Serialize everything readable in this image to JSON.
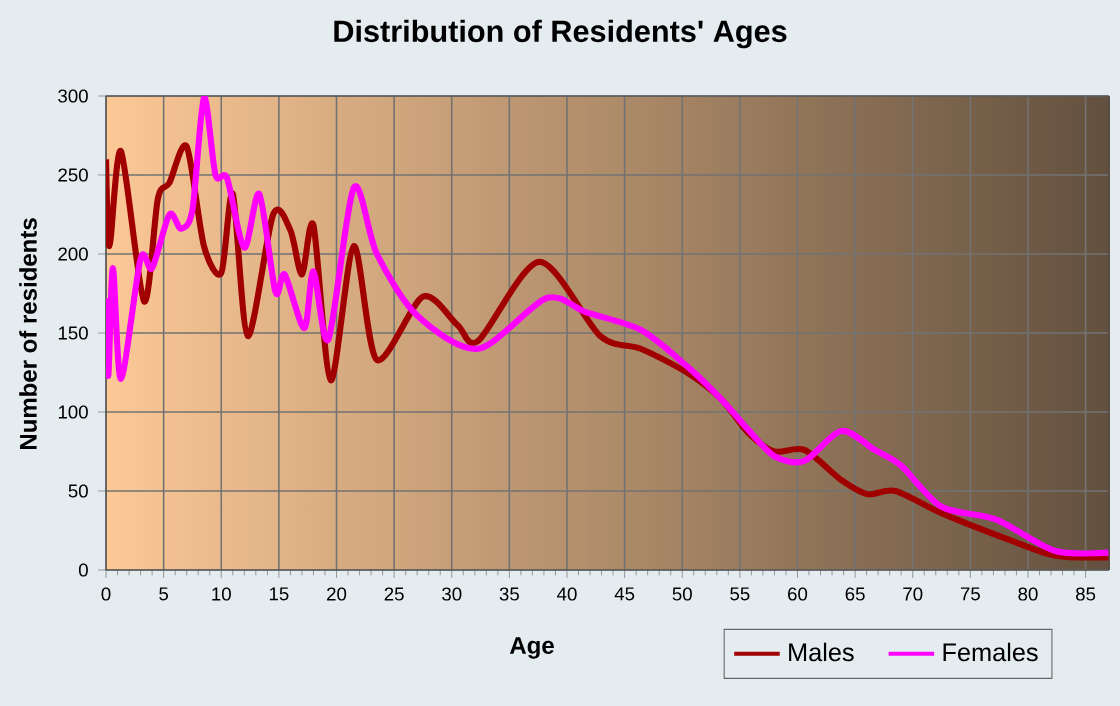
{
  "chart_data": {
    "type": "line",
    "title": "Distribution of Residents' Ages",
    "xlabel": "Age",
    "ylabel": "Number of residents",
    "xlim": [
      0,
      87
    ],
    "xticks": [
      0,
      5,
      10,
      15,
      20,
      25,
      30,
      35,
      40,
      45,
      50,
      55,
      60,
      65,
      70,
      75,
      80,
      85
    ],
    "ylim": [
      0,
      300
    ],
    "yticks": [
      0,
      50,
      100,
      150,
      200,
      250,
      300
    ],
    "grid": true,
    "legend": "bottom right",
    "marker": "none",
    "line_style": "solid",
    "series": [
      {
        "name": "Males",
        "color": "#a00000",
        "x": [
          0,
          0.3,
          1.3,
          3.3,
          4.5,
          5.5,
          7,
          8.5,
          10,
          11,
          12.3,
          14.5,
          16,
          17,
          18,
          19.5,
          21.5,
          23.5,
          27.5,
          30.5,
          32.3,
          37.6,
          42.9,
          46.4,
          50.4,
          53.4,
          55.7,
          58,
          60.6,
          63.8,
          66.1,
          68.5,
          72.5,
          78.4,
          82.4,
          87
        ],
        "values": [
          260,
          205,
          265,
          170,
          235,
          245,
          268,
          205,
          188,
          238,
          148,
          225,
          215,
          187,
          218,
          120,
          205,
          133,
          173,
          155,
          145,
          195,
          148,
          140,
          125,
          108,
          87,
          75,
          76,
          57,
          48,
          50,
          36,
          19,
          9,
          8
        ]
      },
      {
        "name": "Females",
        "color": "#ff00ff",
        "x": [
          0,
          0.2,
          0.6,
          1.3,
          3,
          4,
          5.5,
          6.5,
          7.5,
          8.5,
          9.5,
          10.5,
          12,
          13.3,
          14.7,
          15.5,
          17.2,
          18,
          19.3,
          21.5,
          23.5,
          27,
          32.3,
          38.2,
          41.7,
          46.4,
          50.4,
          53.4,
          55.7,
          58,
          60.6,
          63.8,
          66.7,
          69,
          72.5,
          77.2,
          82.4,
          87
        ],
        "values": [
          172,
          123,
          191,
          121,
          197,
          191,
          225,
          216,
          228,
          299,
          250,
          248,
          204,
          238,
          176,
          187,
          153,
          189,
          146,
          242,
          200,
          161,
          140,
          172,
          163,
          152,
          129,
          108,
          89,
          72,
          69,
          88,
          76,
          66,
          40,
          32,
          12,
          11
        ]
      }
    ]
  }
}
